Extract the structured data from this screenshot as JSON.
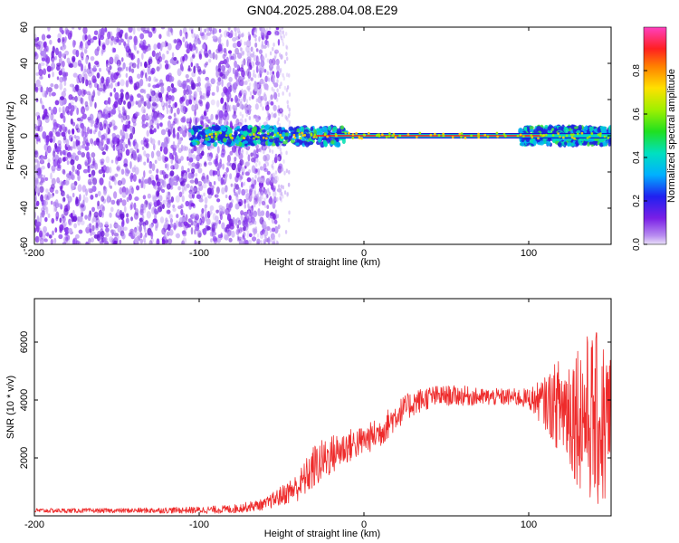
{
  "figure": {
    "title": "GN04.2025.288.04.08.E29"
  },
  "chart_data": [
    {
      "type": "heatmap",
      "xlabel": "Height of straight line (km)",
      "ylabel": "Frequency (Hz)",
      "xlim": [
        -200,
        150
      ],
      "ylim": [
        -60,
        60
      ],
      "xticks": [
        -200,
        -100,
        0,
        100
      ],
      "yticks": [
        -60,
        -40,
        -20,
        0,
        20,
        40,
        60
      ],
      "colorbar": {
        "label": "Normalized spectral amplitude",
        "range": [
          0,
          1
        ],
        "ticks": [
          "0.0",
          "0.2",
          "0.4",
          "0.6",
          "0.8"
        ],
        "tick_values": [
          0.0,
          0.2,
          0.4,
          0.6,
          0.8
        ]
      },
      "description_points": {
        "noise_region_x": [
          -200,
          -50
        ],
        "noise_fade_x": [
          -65,
          -45
        ],
        "signal_band_freq": 0,
        "signal_core_x": [
          -30,
          110
        ],
        "signal_spread_regions": [
          [
            -105,
            -10
          ],
          [
            95,
            150
          ]
        ],
        "colors": {
          "noise": "#7a1fe6",
          "band": "#00d8c8",
          "core": "#ff2020"
        }
      }
    },
    {
      "type": "line",
      "xlabel": "Height of straight line (km)",
      "ylabel": "SNR (10 * v/v)",
      "xlim": [
        -200,
        150
      ],
      "ylim": [
        0,
        7500
      ],
      "xticks": [
        -200,
        -100,
        0,
        100
      ],
      "yticks": [
        2000,
        4000,
        6000
      ],
      "series": [
        {
          "name": "SNR",
          "color": "#ee2b2b",
          "envelope_x": [
            -200,
            -150,
            -100,
            -80,
            -60,
            -50,
            -40,
            -30,
            -20,
            -10,
            0,
            10,
            20,
            30,
            40,
            50,
            60,
            70,
            80,
            90,
            100,
            110,
            120,
            130,
            140,
            150
          ],
          "envelope_mean": [
            180,
            180,
            200,
            230,
            400,
            700,
            1000,
            1700,
            2100,
            2400,
            2600,
            2900,
            3500,
            3900,
            4100,
            4150,
            4150,
            4100,
            4100,
            4100,
            4050,
            3900,
            3800,
            3600,
            3300,
            3000
          ],
          "envelope_amp": [
            80,
            80,
            120,
            150,
            200,
            350,
            500,
            800,
            700,
            600,
            500,
            550,
            500,
            450,
            400,
            350,
            350,
            300,
            300,
            300,
            350,
            900,
            1800,
            2600,
            3100,
            3000
          ]
        }
      ]
    }
  ]
}
